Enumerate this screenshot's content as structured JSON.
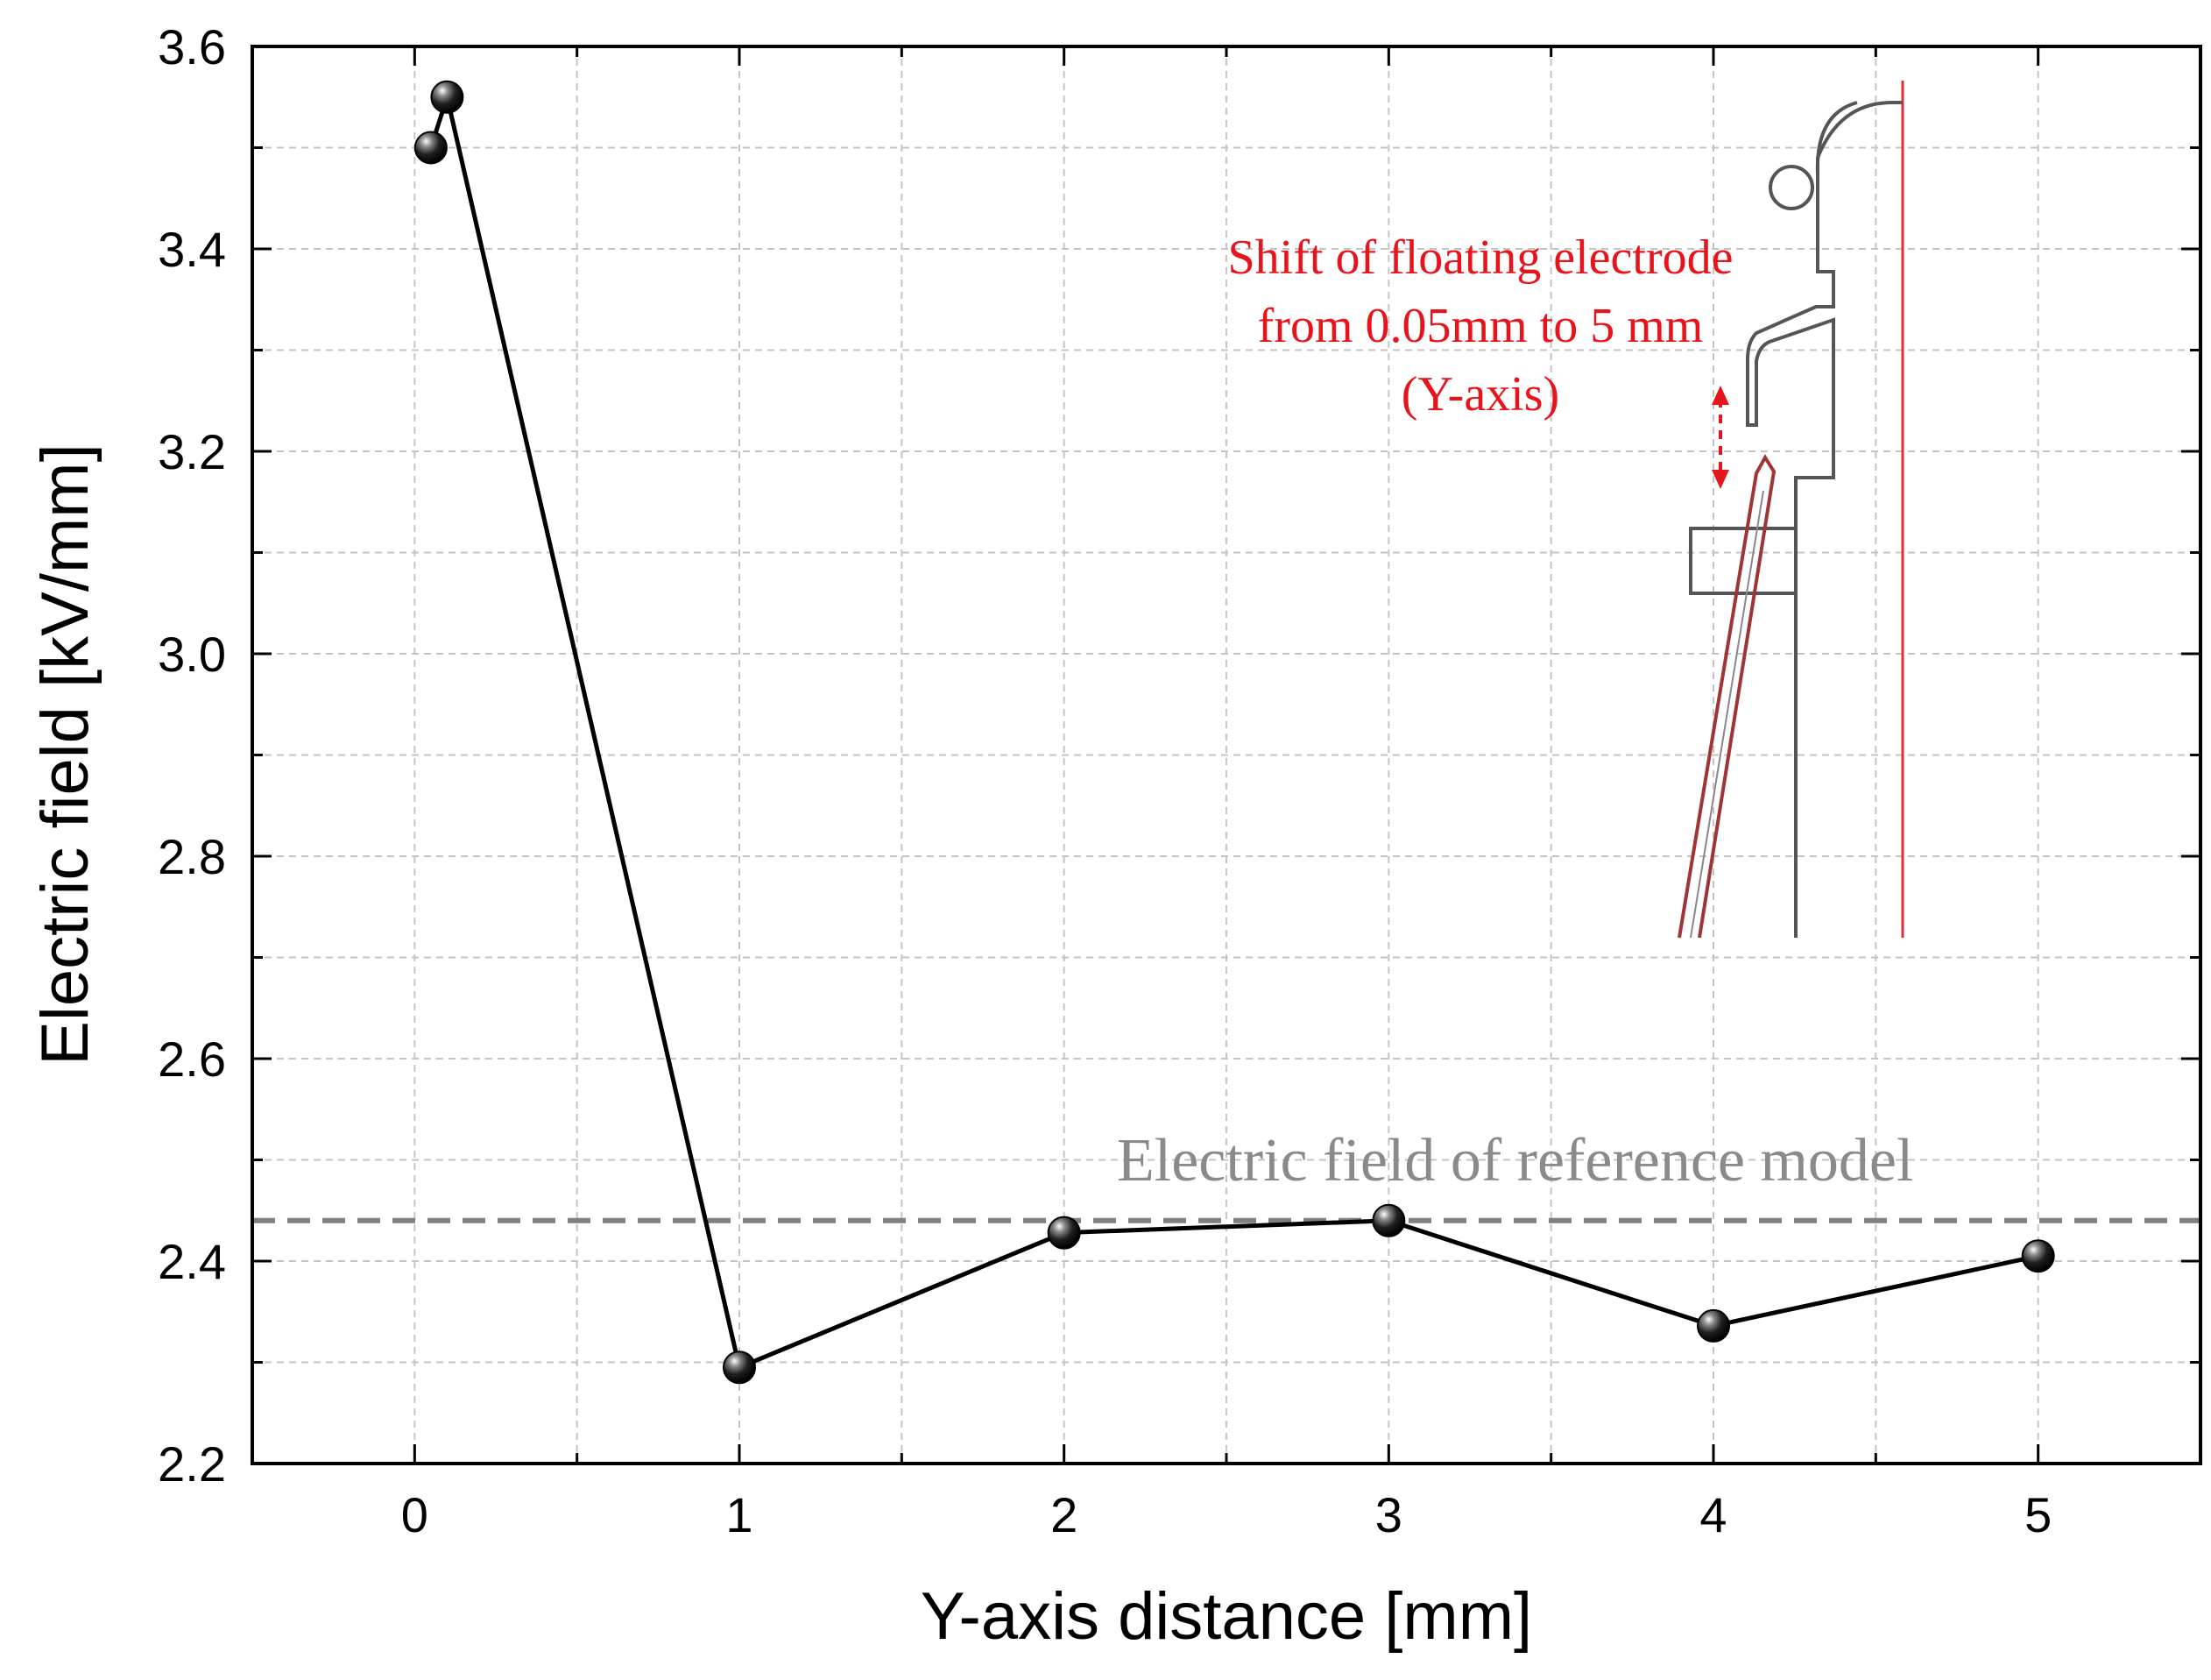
{
  "chart_data": {
    "type": "line",
    "title": "",
    "xlabel": "Y-axis distance [mm]",
    "ylabel": "Electric field [kV/mm]",
    "xlim": [
      -0.5,
      5.5
    ],
    "ylim": [
      2.2,
      3.6
    ],
    "xticks": [
      0,
      1,
      2,
      3,
      4,
      5
    ],
    "xtick_labels": [
      "0",
      "1",
      "2",
      "3",
      "4",
      "5"
    ],
    "yticks": [
      2.2,
      2.4,
      2.6,
      2.8,
      3.0,
      3.2,
      3.4,
      3.6
    ],
    "ytick_labels": [
      "2.2",
      "2.4",
      "2.6",
      "2.8",
      "3.0",
      "3.2",
      "3.4",
      "3.6"
    ],
    "grid": true,
    "series": [
      {
        "name": "Electric field",
        "x": [
          0.05,
          0.1,
          1,
          2,
          3,
          4,
          5
        ],
        "y": [
          3.5,
          3.55,
          2.295,
          2.428,
          2.44,
          2.336,
          2.405
        ],
        "color": "#000000"
      }
    ],
    "reference_line": {
      "y": 2.44,
      "label": "Electric field of reference model",
      "color": "#808080",
      "style": "dashed"
    },
    "inset": {
      "label_lines": [
        "Shift of floating electrode",
        "from 0.05mm to 5 mm",
        "(Y-axis)"
      ],
      "label_color": "#e8141c",
      "outline_color": "#555555",
      "electrode_color": "#b03030"
    }
  }
}
